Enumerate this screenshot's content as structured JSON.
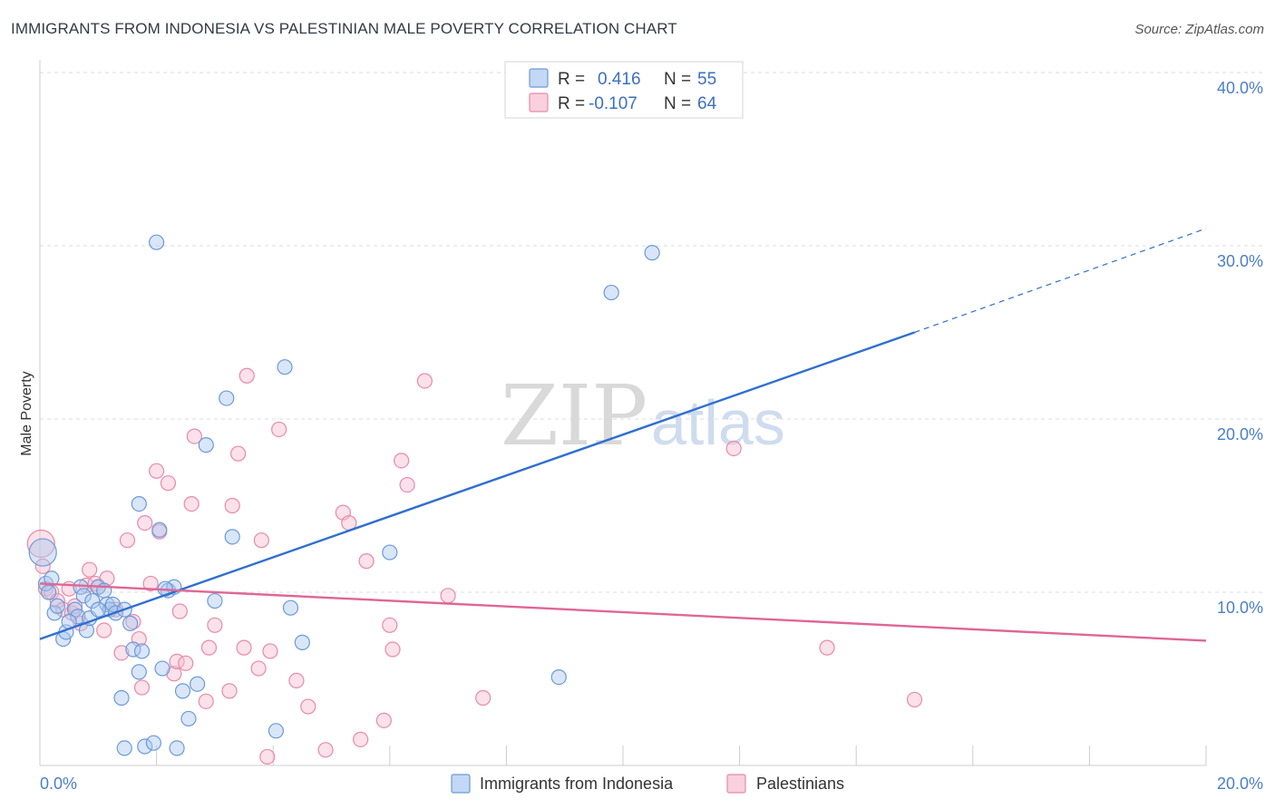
{
  "header": {
    "title": "IMMIGRANTS FROM INDONESIA VS PALESTINIAN MALE POVERTY CORRELATION CHART",
    "source": "Source: ZipAtlas.com"
  },
  "watermark": {
    "zip": "ZIP",
    "atlas": "atlas"
  },
  "colors": {
    "blue_fill": "#aac8ef",
    "blue_stroke": "#6c9ad8",
    "blue_line": "#2f6fd0",
    "pink_fill": "#f6bcd0",
    "pink_stroke": "#e88aa9",
    "pink_line": "#e06694",
    "grid": "#dddddd",
    "axis_text": "#4a7fc8"
  },
  "legend": {
    "rows": [
      {
        "r_label": "R =",
        "r_value": "0.416",
        "n_label": "N =",
        "n_value": "55"
      },
      {
        "r_label": "R =",
        "r_value": "-0.107",
        "n_label": "N =",
        "n_value": "64"
      }
    ]
  },
  "bottom_legend": {
    "items": [
      {
        "label": "Immigrants from Indonesia"
      },
      {
        "label": "Palestinians"
      }
    ]
  },
  "chart_data": {
    "type": "scatter",
    "title": "IMMIGRANTS FROM INDONESIA VS PALESTINIAN MALE POVERTY CORRELATION CHART",
    "xlabel": "",
    "ylabel": "Male Poverty",
    "xlim": [
      0,
      20
    ],
    "ylim": [
      0,
      40
    ],
    "x_tick_labels": [
      "0.0%",
      "20.0%"
    ],
    "y_ticks": [
      10,
      20,
      30,
      40
    ],
    "y_tick_labels": [
      "10.0%",
      "20.0%",
      "30.0%",
      "40.0%"
    ],
    "grid": true,
    "legend_placement": "top-center",
    "series": [
      {
        "name": "Immigrants from Indonesia",
        "r": 0.416,
        "n": 55,
        "trend": {
          "x_start": 0,
          "y_start": 7.3,
          "x_solid_end": 15,
          "y_solid_end": 25.0,
          "x_end": 20,
          "y_end": 31.0
        },
        "points": [
          [
            0.05,
            12.3
          ],
          [
            0.1,
            10.5
          ],
          [
            0.15,
            10.0
          ],
          [
            0.25,
            8.8
          ],
          [
            0.3,
            9.2
          ],
          [
            0.4,
            7.3
          ],
          [
            0.45,
            7.7
          ],
          [
            0.6,
            9.0
          ],
          [
            0.65,
            8.6
          ],
          [
            0.7,
            10.3
          ],
          [
            0.75,
            9.8
          ],
          [
            0.8,
            7.8
          ],
          [
            0.85,
            8.5
          ],
          [
            0.9,
            9.5
          ],
          [
            1.0,
            10.3
          ],
          [
            1.1,
            10.1
          ],
          [
            1.15,
            9.3
          ],
          [
            1.2,
            9.0
          ],
          [
            1.25,
            9.3
          ],
          [
            1.3,
            8.8
          ],
          [
            1.4,
            3.9
          ],
          [
            1.45,
            1.0
          ],
          [
            1.55,
            8.2
          ],
          [
            1.6,
            6.7
          ],
          [
            1.7,
            15.1
          ],
          [
            1.7,
            5.4
          ],
          [
            1.75,
            6.6
          ],
          [
            1.8,
            1.1
          ],
          [
            1.95,
            1.3
          ],
          [
            2.0,
            30.2
          ],
          [
            2.05,
            13.6
          ],
          [
            2.1,
            5.6
          ],
          [
            2.2,
            10.1
          ],
          [
            2.3,
            10.3
          ],
          [
            2.35,
            1.0
          ],
          [
            2.45,
            4.3
          ],
          [
            2.55,
            2.7
          ],
          [
            2.7,
            4.7
          ],
          [
            2.85,
            18.5
          ],
          [
            3.2,
            21.2
          ],
          [
            3.3,
            13.2
          ],
          [
            4.05,
            2.0
          ],
          [
            4.2,
            23.0
          ],
          [
            4.3,
            9.1
          ],
          [
            4.5,
            7.1
          ],
          [
            6.0,
            12.3
          ],
          [
            8.9,
            5.1
          ],
          [
            9.8,
            27.3
          ],
          [
            10.5,
            29.6
          ],
          [
            1.0,
            9.0
          ],
          [
            0.5,
            8.3
          ],
          [
            1.45,
            9.0
          ],
          [
            0.2,
            10.8
          ],
          [
            2.15,
            10.2
          ],
          [
            3.0,
            9.5
          ]
        ]
      },
      {
        "name": "Palestinians",
        "r": -0.107,
        "n": 64,
        "trend": {
          "x_start": 0,
          "y_start": 10.5,
          "x_end": 20,
          "y_end": 7.2
        },
        "points": [
          [
            0.02,
            12.8
          ],
          [
            0.05,
            11.5
          ],
          [
            0.1,
            10.2
          ],
          [
            0.2,
            10.0
          ],
          [
            0.3,
            9.5
          ],
          [
            0.4,
            9.0
          ],
          [
            0.5,
            10.2
          ],
          [
            0.55,
            8.8
          ],
          [
            0.6,
            9.2
          ],
          [
            0.7,
            8.2
          ],
          [
            0.8,
            10.4
          ],
          [
            0.85,
            11.3
          ],
          [
            0.95,
            10.5
          ],
          [
            1.0,
            10.3
          ],
          [
            1.1,
            7.8
          ],
          [
            1.15,
            10.8
          ],
          [
            1.3,
            9.0
          ],
          [
            1.4,
            6.5
          ],
          [
            1.5,
            13.0
          ],
          [
            1.6,
            8.3
          ],
          [
            1.7,
            7.3
          ],
          [
            1.75,
            4.5
          ],
          [
            1.8,
            14.0
          ],
          [
            1.9,
            10.5
          ],
          [
            2.0,
            17.0
          ],
          [
            2.05,
            13.5
          ],
          [
            2.2,
            16.3
          ],
          [
            2.3,
            5.3
          ],
          [
            2.35,
            6.0
          ],
          [
            2.4,
            8.9
          ],
          [
            2.5,
            5.9
          ],
          [
            2.6,
            15.1
          ],
          [
            2.65,
            19.0
          ],
          [
            2.85,
            3.7
          ],
          [
            2.9,
            6.8
          ],
          [
            3.0,
            8.1
          ],
          [
            3.25,
            4.3
          ],
          [
            3.3,
            15.0
          ],
          [
            3.4,
            18.0
          ],
          [
            3.5,
            6.8
          ],
          [
            3.55,
            22.5
          ],
          [
            3.75,
            5.6
          ],
          [
            3.8,
            13.0
          ],
          [
            3.9,
            0.5
          ],
          [
            3.95,
            6.6
          ],
          [
            4.1,
            19.4
          ],
          [
            4.4,
            4.9
          ],
          [
            4.6,
            3.4
          ],
          [
            4.9,
            0.9
          ],
          [
            5.2,
            14.6
          ],
          [
            5.3,
            14.0
          ],
          [
            5.5,
            1.5
          ],
          [
            5.6,
            11.8
          ],
          [
            5.9,
            2.6
          ],
          [
            6.0,
            8.1
          ],
          [
            6.05,
            6.7
          ],
          [
            6.2,
            17.6
          ],
          [
            6.3,
            16.2
          ],
          [
            6.6,
            22.2
          ],
          [
            7.0,
            9.8
          ],
          [
            7.6,
            3.9
          ],
          [
            11.9,
            18.3
          ],
          [
            13.5,
            6.8
          ],
          [
            15.0,
            3.8
          ]
        ]
      }
    ]
  }
}
